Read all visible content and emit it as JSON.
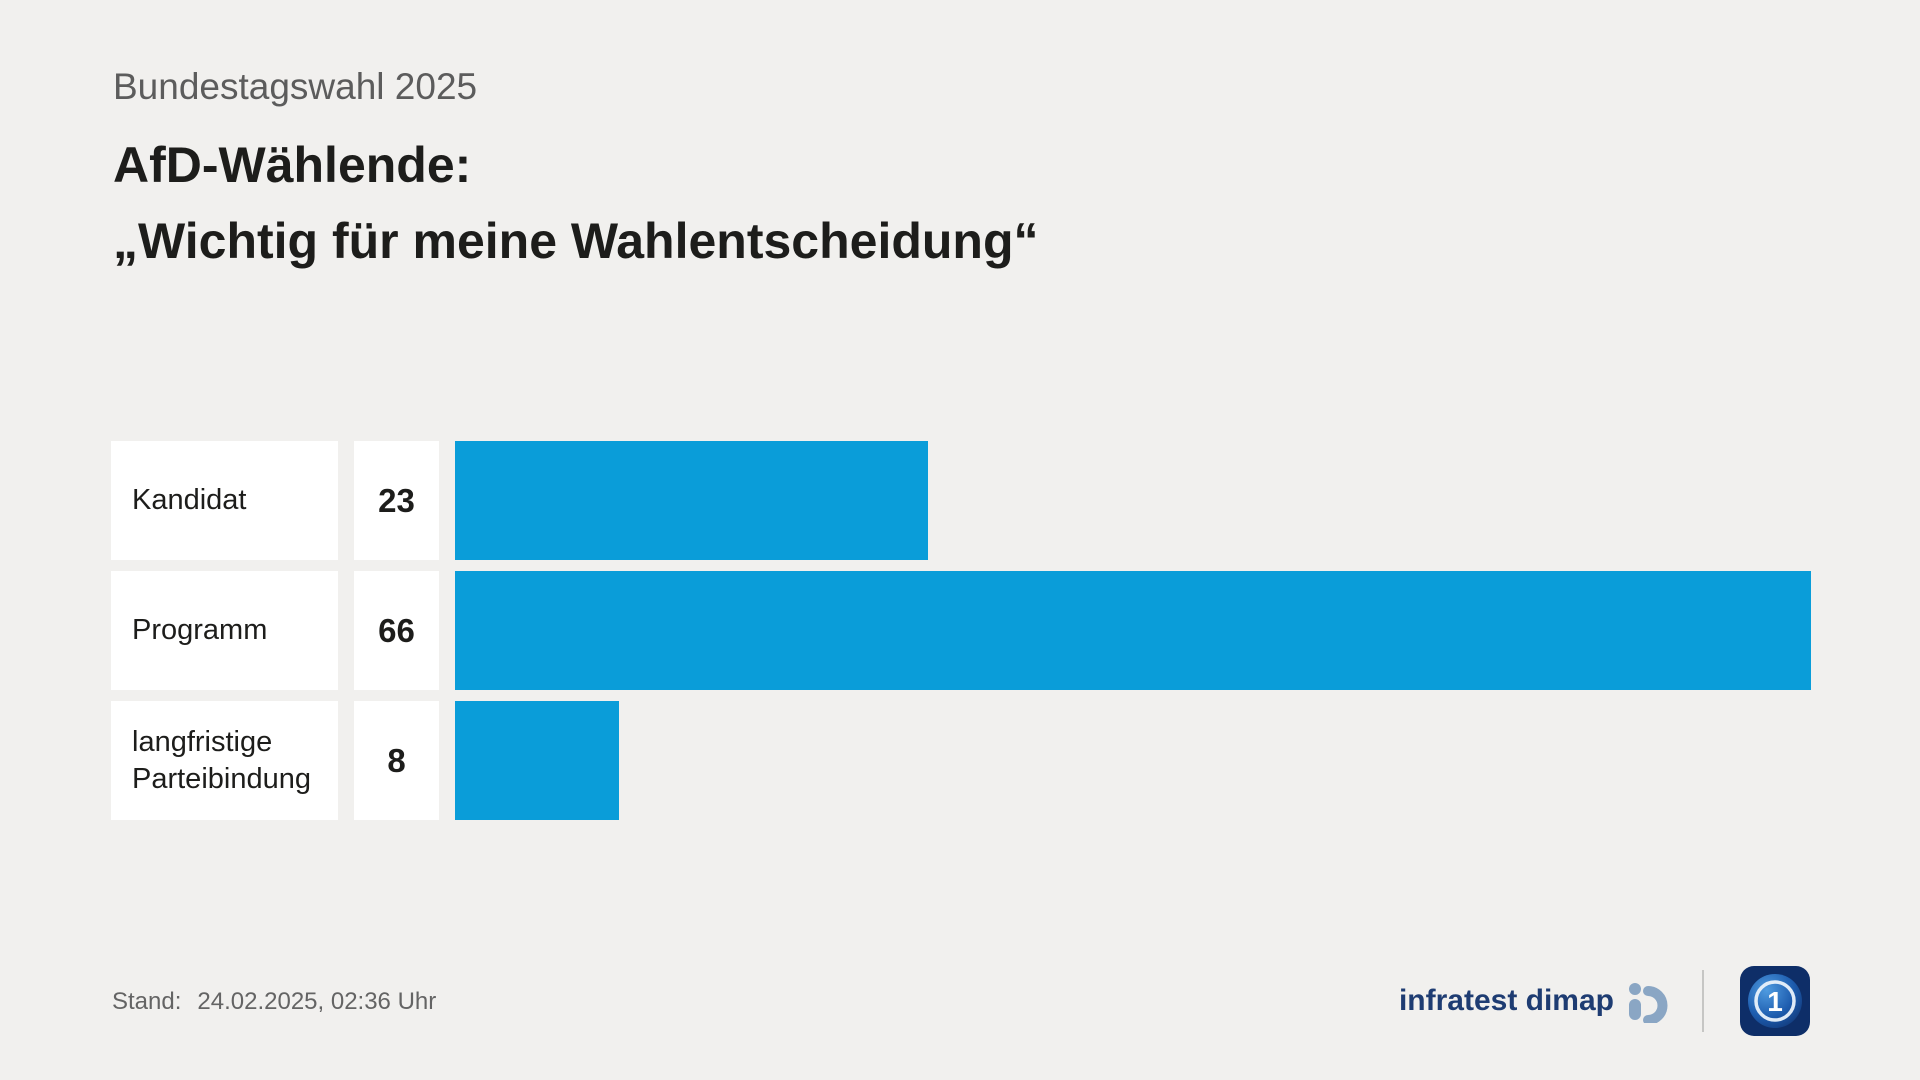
{
  "kicker": "Bundestagswahl 2025",
  "title": "AfD-Wählende:",
  "subtitle": "„Wichtig für meine Wahlentscheidung“",
  "chart_data": {
    "type": "bar",
    "orientation": "horizontal",
    "title": "AfD-Wählende: „Wichtig für meine Wahlentscheidung“",
    "categories": [
      "Kandidat",
      "Programm",
      "langfristige Parteibindung"
    ],
    "values": [
      23,
      66,
      8
    ],
    "xlim": [
      0,
      66
    ],
    "grid": false,
    "legend": false,
    "bar_color": "#0a9dd9"
  },
  "footer": {
    "stand_label": "Stand:",
    "stand_value": "24.02.2025, 02:36 Uhr",
    "source_label": "infratest dimap"
  },
  "colors": {
    "background": "#f1f0ee",
    "bar": "#0a9dd9",
    "text_dark": "#1d1d1b",
    "kicker_gray": "#5c5c5c",
    "stand_gray": "#646464",
    "source_navy": "#1e3c72",
    "box_white": "#ffffff"
  }
}
